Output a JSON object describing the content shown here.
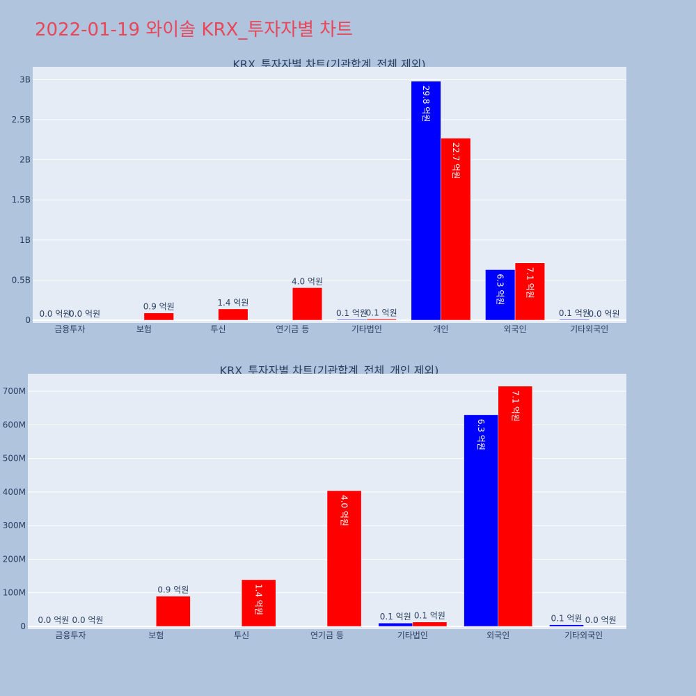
{
  "page": {
    "title": "2022-01-19 와이솔 KRX_투자자별 차트",
    "title_color": "#e8475a",
    "background": "#b0c4de"
  },
  "chart_data": [
    {
      "type": "bar",
      "title": "KRX_투자자별 차트(기관합계_전체 제외)",
      "categories": [
        "금융투자",
        "보험",
        "투신",
        "연기금 등",
        "기타법인",
        "개인",
        "외국인",
        "기타외국인"
      ],
      "series": [
        {
          "color": "#0000ff",
          "values": [
            0,
            0,
            0,
            0,
            8000000,
            2980000000,
            630000000,
            5000000
          ]
        },
        {
          "color": "#ff0000",
          "values": [
            0,
            90000000,
            140000000,
            405000000,
            13000000,
            2270000000,
            714000000,
            0
          ]
        }
      ],
      "labels": [
        [
          "0.0 억원",
          null,
          null,
          null,
          "0.1 억원",
          "29.8 억원",
          "6.3 억원",
          "0.1 억원"
        ],
        [
          "0.0 억원",
          "0.9 억원",
          "1.4 억원",
          "4.0 억원",
          "0.1 억원",
          "22.7 억원",
          "7.1 억원",
          "0.0 억원"
        ]
      ],
      "y_ticks": [
        0,
        500000000,
        1000000000,
        1500000000,
        2000000000,
        2500000000,
        3000000000
      ],
      "y_tick_labels": [
        "0",
        "0.5B",
        "1B",
        "1.5B",
        "2B",
        "2.5B",
        "3B"
      ],
      "ylim": [
        0,
        3160000000
      ],
      "grid": true,
      "plot_background": "#e5ecf6"
    },
    {
      "type": "bar",
      "title": "KRX_투자자별 차트(기관합계_전체_개인 제외)",
      "categories": [
        "금융투자",
        "보험",
        "투신",
        "연기금 등",
        "기타법인",
        "외국인",
        "기타외국인"
      ],
      "series": [
        {
          "color": "#0000ff",
          "values": [
            0,
            0,
            0,
            0,
            10000000,
            630000000,
            5000000
          ]
        },
        {
          "color": "#ff0000",
          "values": [
            0,
            90000000,
            139000000,
            404000000,
            13000000,
            715000000,
            0
          ]
        }
      ],
      "labels": [
        [
          "0.0 억원",
          null,
          null,
          null,
          "0.1 억원",
          "6.3 억원",
          "0.1 억원"
        ],
        [
          "0.0 억원",
          "0.9 억원",
          "1.4 억원",
          "4.0 억원",
          "0.1 억원",
          "7.1 억원",
          "0.0 억원"
        ]
      ],
      "y_ticks": [
        0,
        100000000,
        200000000,
        300000000,
        400000000,
        500000000,
        600000000,
        700000000
      ],
      "y_tick_labels": [
        "0",
        "100M",
        "200M",
        "300M",
        "400M",
        "500M",
        "600M",
        "700M"
      ],
      "ylim": [
        0,
        752000000
      ],
      "grid": true,
      "plot_background": "#e5ecf6"
    }
  ]
}
